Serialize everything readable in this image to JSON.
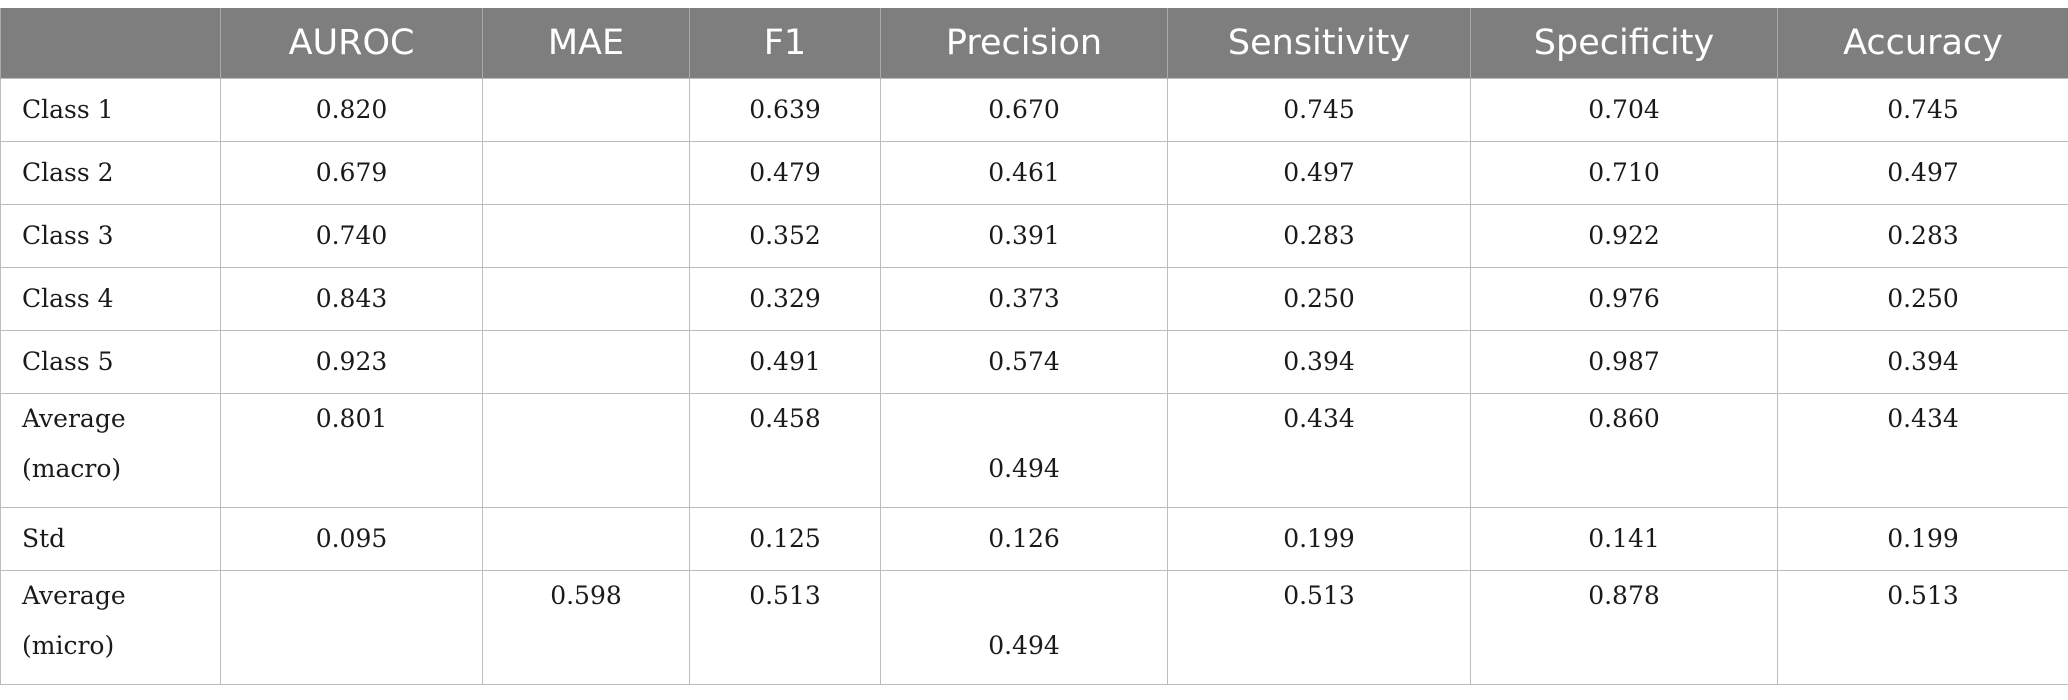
{
  "columns": [
    "",
    "AUROC",
    "MAE",
    "F1",
    "Precision",
    "Sensitivity",
    "Specificity",
    "Accuracy"
  ],
  "rows": [
    {
      "label": "Class 1",
      "auroc": "0.820",
      "mae": "",
      "f1": "0.639",
      "precision": "0.670",
      "sensitivity": "0.745",
      "specificity": "0.704",
      "accuracy": "0.745"
    },
    {
      "label": "Class 2",
      "auroc": "0.679",
      "mae": "",
      "f1": "0.479",
      "precision": "0.461",
      "sensitivity": "0.497",
      "specificity": "0.710",
      "accuracy": "0.497"
    },
    {
      "label": "Class 3",
      "auroc": "0.740",
      "mae": "",
      "f1": "0.352",
      "precision": "0.391",
      "sensitivity": "0.283",
      "specificity": "0.922",
      "accuracy": "0.283"
    },
    {
      "label": "Class 4",
      "auroc": "0.843",
      "mae": "",
      "f1": "0.329",
      "precision": "0.373",
      "sensitivity": "0.250",
      "specificity": "0.976",
      "accuracy": "0.250"
    },
    {
      "label": "Class 5",
      "auroc": "0.923",
      "mae": "",
      "f1": "0.491",
      "precision": "0.574",
      "sensitivity": "0.394",
      "specificity": "0.987",
      "accuracy": "0.394"
    },
    {
      "label_line1": "Average",
      "label_line2": "(macro)",
      "auroc": "0.801",
      "mae": "",
      "f1": "0.458",
      "precision": "0.494",
      "sensitivity": "0.434",
      "specificity": "0.860",
      "accuracy": "0.434"
    },
    {
      "label": "Std",
      "auroc": "0.095",
      "mae": "",
      "f1": "0.125",
      "precision": "0.126",
      "sensitivity": "0.199",
      "specificity": "0.141",
      "accuracy": "0.199"
    },
    {
      "label_line1": "Average",
      "label_line2": "(micro)",
      "auroc": "",
      "mae": "0.598",
      "f1": "0.513",
      "precision": "0.494",
      "sensitivity": "0.513",
      "specificity": "0.878",
      "accuracy": "0.513"
    }
  ]
}
